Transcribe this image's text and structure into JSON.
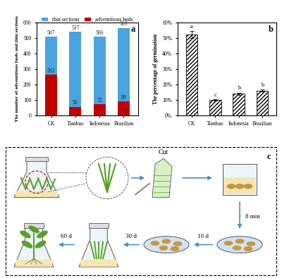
{
  "chart_data": [
    {
      "type": "bar",
      "title": "a",
      "stacked": false,
      "data_labels": true,
      "categories": [
        "CK",
        "Tianbao",
        "Indonesia",
        "Brazilian"
      ],
      "series": [
        {
          "name": "thin sections",
          "color": "#4aa3df",
          "values": [
            507,
            537,
            506,
            563
          ]
        },
        {
          "name": "adventitious buds",
          "color": "#c00000",
          "values": [
            262,
            56,
            72,
            89
          ]
        }
      ],
      "ylabel": "The number of adventitious buds and thin sections",
      "ylim": [
        0,
        600
      ],
      "yticks": [
        0,
        100,
        200,
        300,
        400,
        500,
        600
      ],
      "legend": "upper center"
    },
    {
      "type": "bar",
      "title": "b",
      "color": "#ffffff",
      "categories": [
        "CK",
        "Tianbao",
        "Indonesia",
        "Brazilian"
      ],
      "values": [
        52,
        10,
        14,
        16
      ],
      "errors": [
        2.2,
        0.5,
        0.7,
        0.8
      ],
      "annotations": [
        "a",
        "c",
        "b",
        "b"
      ],
      "ylabel": "The percentage of germination",
      "ylim": [
        0,
        60
      ],
      "yticks": [
        {
          "value": 0,
          "label": "0%"
        },
        {
          "value": 10,
          "label": "10%"
        },
        {
          "value": 20,
          "label": "20%"
        },
        {
          "value": 30,
          "label": "30%"
        },
        {
          "value": 40,
          "label": "40%"
        },
        {
          "value": 50,
          "label": "50%"
        },
        {
          "value": 60,
          "label": "60%"
        }
      ]
    }
  ],
  "diagram": {
    "panel_label": "c",
    "cut_label": "Cut",
    "steps": [
      "8 min",
      "10 d",
      "30 d",
      "60 d"
    ]
  }
}
